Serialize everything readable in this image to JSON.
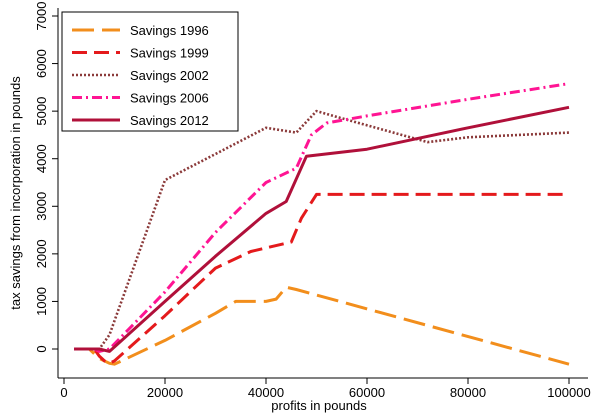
{
  "chart_data": {
    "type": "line",
    "title": "",
    "xlabel": "profits in pounds",
    "ylabel": "tax savings from incorporation in pounds",
    "xlim": [
      0,
      100000
    ],
    "ylim": [
      -500,
      7000
    ],
    "x_ticks": [
      {
        "value": 0,
        "label": "0"
      },
      {
        "value": 20000,
        "label": "20000"
      },
      {
        "value": 40000,
        "label": "40000"
      },
      {
        "value": 60000,
        "label": "60000"
      },
      {
        "value": 80000,
        "label": "80000"
      },
      {
        "value": 100000,
        "label": "100000"
      }
    ],
    "y_ticks": [
      {
        "value": 0,
        "label": "0"
      },
      {
        "value": 1000,
        "label": "1000"
      },
      {
        "value": 2000,
        "label": "2000"
      },
      {
        "value": 3000,
        "label": "3000"
      },
      {
        "value": 4000,
        "label": "4000"
      },
      {
        "value": 5000,
        "label": "5000"
      },
      {
        "value": 6000,
        "label": "6000"
      },
      {
        "value": 7000,
        "label": "7000"
      }
    ],
    "grid": false,
    "legend_position": "top-left",
    "series": [
      {
        "name": "Savings 1996",
        "color": "#f28e1c",
        "style": "long-dash",
        "points": [
          [
            2000,
            0
          ],
          [
            5000,
            0
          ],
          [
            6000,
            -100
          ],
          [
            7000,
            -200
          ],
          [
            9000,
            -300
          ],
          [
            10000,
            -320
          ],
          [
            20000,
            180
          ],
          [
            30000,
            750
          ],
          [
            34000,
            1000
          ],
          [
            40000,
            1000
          ],
          [
            42000,
            1050
          ],
          [
            44000,
            1300
          ],
          [
            46000,
            1250
          ],
          [
            100000,
            -320
          ]
        ]
      },
      {
        "name": "Savings 1999",
        "color": "#e41a1c",
        "style": "dash",
        "points": [
          [
            2000,
            0
          ],
          [
            6000,
            0
          ],
          [
            7000,
            -150
          ],
          [
            8000,
            -250
          ],
          [
            9000,
            -300
          ],
          [
            10000,
            -250
          ],
          [
            20000,
            700
          ],
          [
            30000,
            1700
          ],
          [
            37000,
            2050
          ],
          [
            45000,
            2250
          ],
          [
            47000,
            2750
          ],
          [
            50000,
            3250
          ],
          [
            100000,
            3250
          ]
        ]
      },
      {
        "name": "Savings 2002",
        "color": "#8b3a3a",
        "style": "dotted",
        "points": [
          [
            2000,
            0
          ],
          [
            7000,
            0
          ],
          [
            9000,
            300
          ],
          [
            20000,
            3550
          ],
          [
            30000,
            4100
          ],
          [
            40000,
            4650
          ],
          [
            46000,
            4550
          ],
          [
            50000,
            5000
          ],
          [
            55000,
            4850
          ],
          [
            72000,
            4350
          ],
          [
            80000,
            4450
          ],
          [
            100000,
            4550
          ]
        ]
      },
      {
        "name": "Savings 2006",
        "color": "#ff1493",
        "style": "dash-dot",
        "points": [
          [
            2000,
            0
          ],
          [
            6000,
            0
          ],
          [
            7000,
            -50
          ],
          [
            9000,
            0
          ],
          [
            20000,
            1200
          ],
          [
            30000,
            2450
          ],
          [
            40000,
            3500
          ],
          [
            46000,
            3800
          ],
          [
            49000,
            4500
          ],
          [
            52000,
            4750
          ],
          [
            60000,
            4900
          ],
          [
            80000,
            5250
          ],
          [
            100000,
            5580
          ]
        ]
      },
      {
        "name": "Savings 2012",
        "color": "#b0103a",
        "style": "solid",
        "points": [
          [
            2000,
            0
          ],
          [
            7000,
            0
          ],
          [
            9000,
            -50
          ],
          [
            20000,
            1000
          ],
          [
            30000,
            1950
          ],
          [
            40000,
            2850
          ],
          [
            44000,
            3100
          ],
          [
            48000,
            4050
          ],
          [
            60000,
            4200
          ],
          [
            80000,
            4650
          ],
          [
            100000,
            5080
          ]
        ]
      }
    ]
  }
}
